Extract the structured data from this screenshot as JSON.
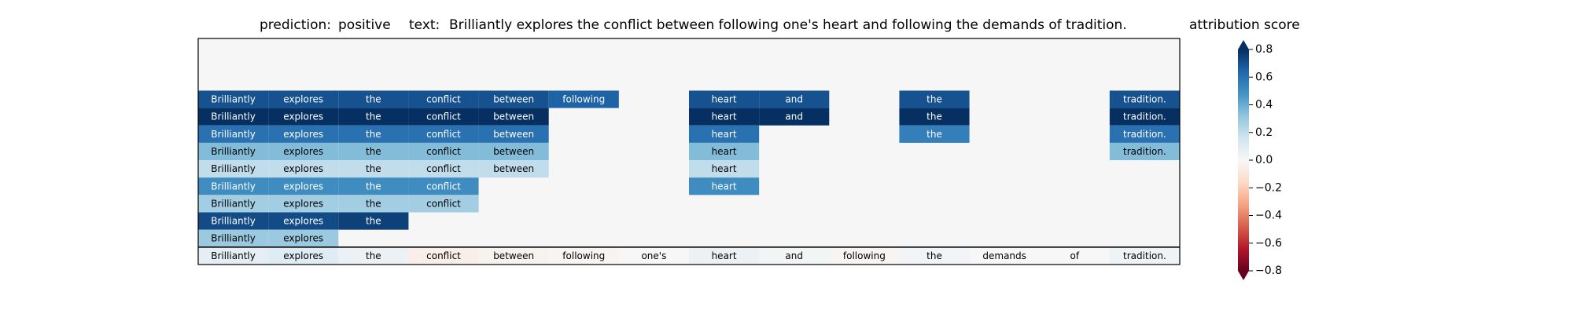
{
  "header": {
    "prediction_label": "prediction:",
    "prediction_value": "positive",
    "text_label": "text:",
    "text_value": "Brilliantly explores the conflict between following one's heart and following the demands of tradition.",
    "colorbar_title": "attribution score"
  },
  "chart_data": {
    "type": "heatmap",
    "tokens": [
      "Brilliantly",
      "explores",
      "the",
      "conflict",
      "between",
      "following",
      "one's",
      "heart",
      "and",
      "following",
      "the",
      "demands",
      "of",
      "tradition."
    ],
    "n_rows": 13,
    "background_color": "#f5f6f5",
    "rows": [
      {
        "cells": []
      },
      {
        "cells": []
      },
      {
        "cells": []
      },
      {
        "cells": [
          {
            "col": 0,
            "value": 0.7
          },
          {
            "col": 1,
            "value": 0.7
          },
          {
            "col": 2,
            "value": 0.7
          },
          {
            "col": 3,
            "value": 0.7
          },
          {
            "col": 4,
            "value": 0.7
          },
          {
            "col": 5,
            "value": 0.65
          },
          {
            "col": 7,
            "value": 0.7
          },
          {
            "col": 8,
            "value": 0.7
          },
          {
            "col": 10,
            "value": 0.7
          },
          {
            "col": 13,
            "value": 0.7
          }
        ]
      },
      {
        "cells": [
          {
            "col": 0,
            "value": 0.8
          },
          {
            "col": 1,
            "value": 0.8
          },
          {
            "col": 2,
            "value": 0.85
          },
          {
            "col": 3,
            "value": 0.85
          },
          {
            "col": 4,
            "value": 0.85
          },
          {
            "col": 7,
            "value": 0.85
          },
          {
            "col": 8,
            "value": 0.85
          },
          {
            "col": 10,
            "value": 0.85
          },
          {
            "col": 13,
            "value": 0.9
          }
        ]
      },
      {
        "cells": [
          {
            "col": 0,
            "value": 0.6
          },
          {
            "col": 1,
            "value": 0.6
          },
          {
            "col": 2,
            "value": 0.6
          },
          {
            "col": 3,
            "value": 0.6
          },
          {
            "col": 4,
            "value": 0.6
          },
          {
            "col": 7,
            "value": 0.6
          },
          {
            "col": 10,
            "value": 0.55
          },
          {
            "col": 13,
            "value": 0.6
          }
        ]
      },
      {
        "cells": [
          {
            "col": 0,
            "value": 0.35
          },
          {
            "col": 1,
            "value": 0.35
          },
          {
            "col": 2,
            "value": 0.35
          },
          {
            "col": 3,
            "value": 0.35
          },
          {
            "col": 4,
            "value": 0.35
          },
          {
            "col": 7,
            "value": 0.35
          },
          {
            "col": 13,
            "value": 0.35
          }
        ]
      },
      {
        "cells": [
          {
            "col": 0,
            "value": 0.2
          },
          {
            "col": 1,
            "value": 0.2
          },
          {
            "col": 2,
            "value": 0.2
          },
          {
            "col": 3,
            "value": 0.2
          },
          {
            "col": 4,
            "value": 0.2
          },
          {
            "col": 7,
            "value": 0.2
          }
        ]
      },
      {
        "cells": [
          {
            "col": 0,
            "value": 0.5
          },
          {
            "col": 1,
            "value": 0.5
          },
          {
            "col": 2,
            "value": 0.5
          },
          {
            "col": 3,
            "value": 0.5
          },
          {
            "col": 7,
            "value": 0.5
          }
        ]
      },
      {
        "cells": [
          {
            "col": 0,
            "value": 0.28
          },
          {
            "col": 1,
            "value": 0.28
          },
          {
            "col": 2,
            "value": 0.28
          },
          {
            "col": 3,
            "value": 0.28
          }
        ]
      },
      {
        "cells": [
          {
            "col": 0,
            "value": 0.72
          },
          {
            "col": 1,
            "value": 0.72
          },
          {
            "col": 2,
            "value": 0.75
          }
        ]
      },
      {
        "cells": [
          {
            "col": 0,
            "value": 0.3
          },
          {
            "col": 1,
            "value": 0.3
          }
        ]
      },
      {
        "cells": [
          {
            "col": 0,
            "value": 0.08
          },
          {
            "col": 1,
            "value": 0.1
          },
          {
            "col": 2,
            "value": 0.05
          },
          {
            "col": 3,
            "value": -0.05
          },
          {
            "col": 4,
            "value": -0.03
          },
          {
            "col": 5,
            "value": -0.02
          },
          {
            "col": 6,
            "value": 0.0
          },
          {
            "col": 7,
            "value": 0.05
          },
          {
            "col": 8,
            "value": 0.02
          },
          {
            "col": 9,
            "value": -0.02
          },
          {
            "col": 10,
            "value": 0.03
          },
          {
            "col": 11,
            "value": 0.0
          },
          {
            "col": 12,
            "value": 0.0
          },
          {
            "col": 13,
            "value": 0.04
          }
        ]
      }
    ],
    "colorbar": {
      "vmin": -0.8,
      "vmax": 0.8,
      "ticks": [
        0.8,
        0.6,
        0.4,
        0.2,
        0.0,
        -0.2,
        -0.4,
        -0.6,
        -0.8
      ],
      "tick_labels": [
        "0.8",
        "0.6",
        "0.4",
        "0.2",
        "0.0",
        "−0.2",
        "−0.4",
        "−0.6",
        "−0.8"
      ],
      "colormap": "RdBu",
      "colormap_stops": [
        "#67001f",
        "#b2182b",
        "#d6604d",
        "#f4a582",
        "#fddbc7",
        "#f7f7f7",
        "#d1e5f0",
        "#92c5de",
        "#4393c3",
        "#2166ac",
        "#053061"
      ]
    }
  }
}
